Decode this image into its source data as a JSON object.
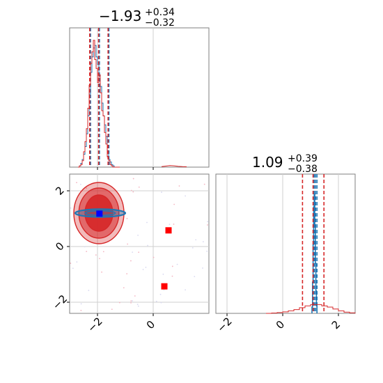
{
  "chart_data": [
    {
      "type": "histogram",
      "panel": "top-left",
      "title": {
        "value": "−1.93",
        "plus": "+0.34",
        "minus": "−0.32"
      },
      "xlim": [
        -3.0,
        2.0
      ],
      "grid": true,
      "x_tick_values": [
        -2,
        0
      ],
      "series": [
        {
          "color": "#1f77b4",
          "bins": [
            -2.7,
            -2.65,
            -2.6,
            -2.55,
            -2.5,
            -2.45,
            -2.4,
            -2.35,
            -2.3,
            -2.25,
            -2.2,
            -2.15,
            -2.1,
            -2.05,
            -2.0,
            -1.95,
            -1.9,
            -1.85,
            -1.8,
            -1.75,
            -1.7,
            -1.65,
            -1.6,
            -1.55,
            -1.5,
            -1.45,
            -1.4,
            -1.35,
            -1.3,
            -1.25,
            -1.2
          ],
          "counts": [
            0.0,
            0.01,
            0.03,
            0.06,
            0.1,
            0.16,
            0.26,
            0.4,
            0.57,
            0.74,
            0.86,
            0.93,
            0.95,
            0.86,
            0.8,
            0.71,
            0.63,
            0.5,
            0.4,
            0.33,
            0.24,
            0.13,
            0.06,
            0.04,
            0.02,
            0.01,
            0.0,
            0.0,
            0.0,
            0.0
          ],
          "quantile_lines": [
            -2.25,
            -1.93,
            -1.59
          ]
        },
        {
          "color": "#d62728",
          "bins": [
            -2.7,
            -2.65,
            -2.6,
            -2.55,
            -2.5,
            -2.45,
            -2.4,
            -2.35,
            -2.3,
            -2.25,
            -2.2,
            -2.15,
            -2.1,
            -2.05,
            -2.0,
            -1.95,
            -1.9,
            -1.85,
            -1.8,
            -1.75,
            -1.7,
            -1.65,
            -1.6,
            -1.55,
            -1.5,
            -1.45,
            -1.4,
            -1.35,
            -1.3,
            -1.25,
            -1.2
          ],
          "counts": [
            0.0,
            0.01,
            0.02,
            0.05,
            0.12,
            0.2,
            0.3,
            0.46,
            0.64,
            0.81,
            0.9,
            0.99,
            0.84,
            0.77,
            0.66,
            0.72,
            0.58,
            0.44,
            0.4,
            0.27,
            0.18,
            0.08,
            0.05,
            0.02,
            0.01,
            0.0,
            0.0,
            0.0,
            0.0,
            0.0
          ],
          "tail": [
            [
              0.3,
              0.004
            ],
            [
              0.45,
              0.008
            ],
            [
              0.6,
              0.012
            ],
            [
              0.75,
              0.01
            ],
            [
              0.9,
              0.006
            ],
            [
              1.05,
              0.004
            ],
            [
              1.2,
              0.003
            ]
          ],
          "quantile_lines": [
            -2.28,
            -1.96,
            -1.62
          ]
        }
      ]
    },
    {
      "type": "scatter",
      "panel": "bottom-left",
      "xlim": [
        -3.0,
        2.0
      ],
      "ylim": [
        -2.4,
        2.6
      ],
      "grid": true,
      "x_tick_values": [
        -2,
        0
      ],
      "y_tick_values": [
        -2,
        0,
        2
      ],
      "red_contour_levels": [
        {
          "center": [
            -1.95,
            1.2
          ],
          "radius": [
            0.9,
            1.1
          ],
          "fill": "#d62728",
          "opacity": 0.32
        },
        {
          "center": [
            -1.95,
            1.2
          ],
          "radius": [
            0.72,
            0.9
          ],
          "fill": "#d62728",
          "opacity": 0.55
        },
        {
          "center": [
            -1.95,
            1.2
          ],
          "radius": [
            0.5,
            0.65
          ],
          "fill": "#d62728",
          "opacity": 0.9
        }
      ],
      "blue_contour": {
        "center": [
          -1.9,
          1.2
        ],
        "radius": [
          0.9,
          0.14
        ],
        "color": "#1f77b4"
      },
      "points": [
        {
          "x": -1.93,
          "y": 1.18,
          "color": "#0000ff",
          "shape": "square"
        },
        {
          "x": 0.55,
          "y": 0.58,
          "color": "#ff0000",
          "shape": "square"
        },
        {
          "x": 0.4,
          "y": -1.43,
          "color": "#ff0000",
          "shape": "square"
        }
      ]
    },
    {
      "type": "histogram",
      "panel": "bottom-right",
      "title": {
        "value": "1.09",
        "plus": "+0.39",
        "minus": "−0.38"
      },
      "xlim": [
        -2.4,
        2.6
      ],
      "grid": true,
      "x_tick_values": [
        -2,
        0,
        2
      ],
      "series": [
        {
          "color": "#1f77b4",
          "bins": [
            1.05,
            1.07,
            1.09,
            1.11,
            1.13,
            1.15,
            1.17,
            1.19,
            1.21,
            1.23
          ],
          "counts": [
            0.05,
            0.25,
            0.55,
            0.85,
            0.95,
            0.7,
            0.4,
            0.18,
            0.06
          ],
          "quantile_lines": [
            1.13,
            1.18,
            1.23
          ]
        },
        {
          "color": "#d62728",
          "bins": [
            -0.6,
            -0.4,
            -0.2,
            0.0,
            0.2,
            0.4,
            0.6,
            0.8,
            1.0,
            1.2,
            1.4,
            1.6,
            1.8,
            2.0,
            2.2,
            2.4,
            2.6
          ],
          "counts": [
            0.0,
            0.003,
            0.006,
            0.012,
            0.02,
            0.03,
            0.045,
            0.06,
            0.07,
            0.07,
            0.06,
            0.05,
            0.035,
            0.02,
            0.01,
            0.004
          ],
          "quantile_lines": [
            0.71,
            1.09,
            1.48
          ]
        }
      ]
    }
  ]
}
